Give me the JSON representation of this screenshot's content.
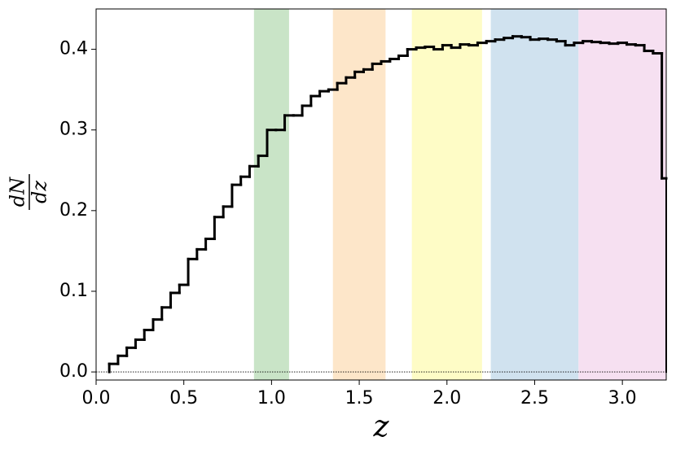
{
  "chart_data": {
    "type": "histogram",
    "xlabel": "z",
    "ylabel": {
      "numerator": "dN",
      "denominator": "dz"
    },
    "bins": [
      0.075,
      0.125,
      0.175,
      0.225,
      0.275,
      0.325,
      0.375,
      0.425,
      0.475,
      0.525,
      0.575,
      0.625,
      0.675,
      0.725,
      0.775,
      0.825,
      0.875,
      0.925,
      0.975,
      1.025,
      1.075,
      1.125,
      1.175,
      1.225,
      1.275,
      1.325,
      1.375,
      1.425,
      1.475,
      1.525,
      1.575,
      1.625,
      1.675,
      1.725,
      1.775,
      1.825,
      1.875,
      1.925,
      1.975,
      2.025,
      2.075,
      2.125,
      2.175,
      2.225,
      2.275,
      2.325,
      2.375,
      2.425,
      2.475,
      2.525,
      2.575,
      2.625,
      2.675,
      2.725,
      2.775,
      2.825,
      2.875,
      2.925,
      2.975,
      3.025,
      3.075,
      3.125,
      3.175,
      3.225,
      3.25
    ],
    "values": [
      0.01,
      0.02,
      0.03,
      0.04,
      0.052,
      0.065,
      0.08,
      0.098,
      0.108,
      0.14,
      0.152,
      0.165,
      0.192,
      0.205,
      0.232,
      0.242,
      0.255,
      0.268,
      0.3,
      0.3,
      0.318,
      0.318,
      0.33,
      0.342,
      0.348,
      0.35,
      0.358,
      0.365,
      0.372,
      0.375,
      0.382,
      0.385,
      0.388,
      0.392,
      0.4,
      0.402,
      0.403,
      0.4,
      0.405,
      0.402,
      0.406,
      0.405,
      0.408,
      0.41,
      0.412,
      0.414,
      0.416,
      0.415,
      0.412,
      0.413,
      0.412,
      0.41,
      0.405,
      0.408,
      0.41,
      0.409,
      0.408,
      0.407,
      0.408,
      0.406,
      0.405,
      0.398,
      0.395,
      0.24
    ],
    "color": "#000000",
    "bands": [
      {
        "range": [
          0.9,
          1.1
        ],
        "color": "#c9e4c7"
      },
      {
        "range": [
          1.35,
          1.65
        ],
        "color": "#fde6c9"
      },
      {
        "range": [
          1.8,
          2.2
        ],
        "color": "#fefcc6"
      },
      {
        "range": [
          2.25,
          2.75
        ],
        "color": "#d0e2ef"
      },
      {
        "range": [
          2.75,
          3.25
        ],
        "color": "#f6e0f1"
      }
    ],
    "xlim": [
      0,
      3.25
    ],
    "ylim": [
      -0.01,
      0.45
    ],
    "xticks": [
      {
        "value": 0,
        "label": "0.0"
      },
      0.5,
      {
        "value": 1,
        "label": "1.0"
      },
      1.5,
      {
        "value": 2,
        "label": "2.0"
      },
      2.5,
      {
        "value": 3,
        "label": "3.0"
      }
    ],
    "yticks": [
      {
        "value": 0,
        "label": "0.0"
      },
      0.1,
      0.2,
      0.3,
      0.4
    ]
  }
}
